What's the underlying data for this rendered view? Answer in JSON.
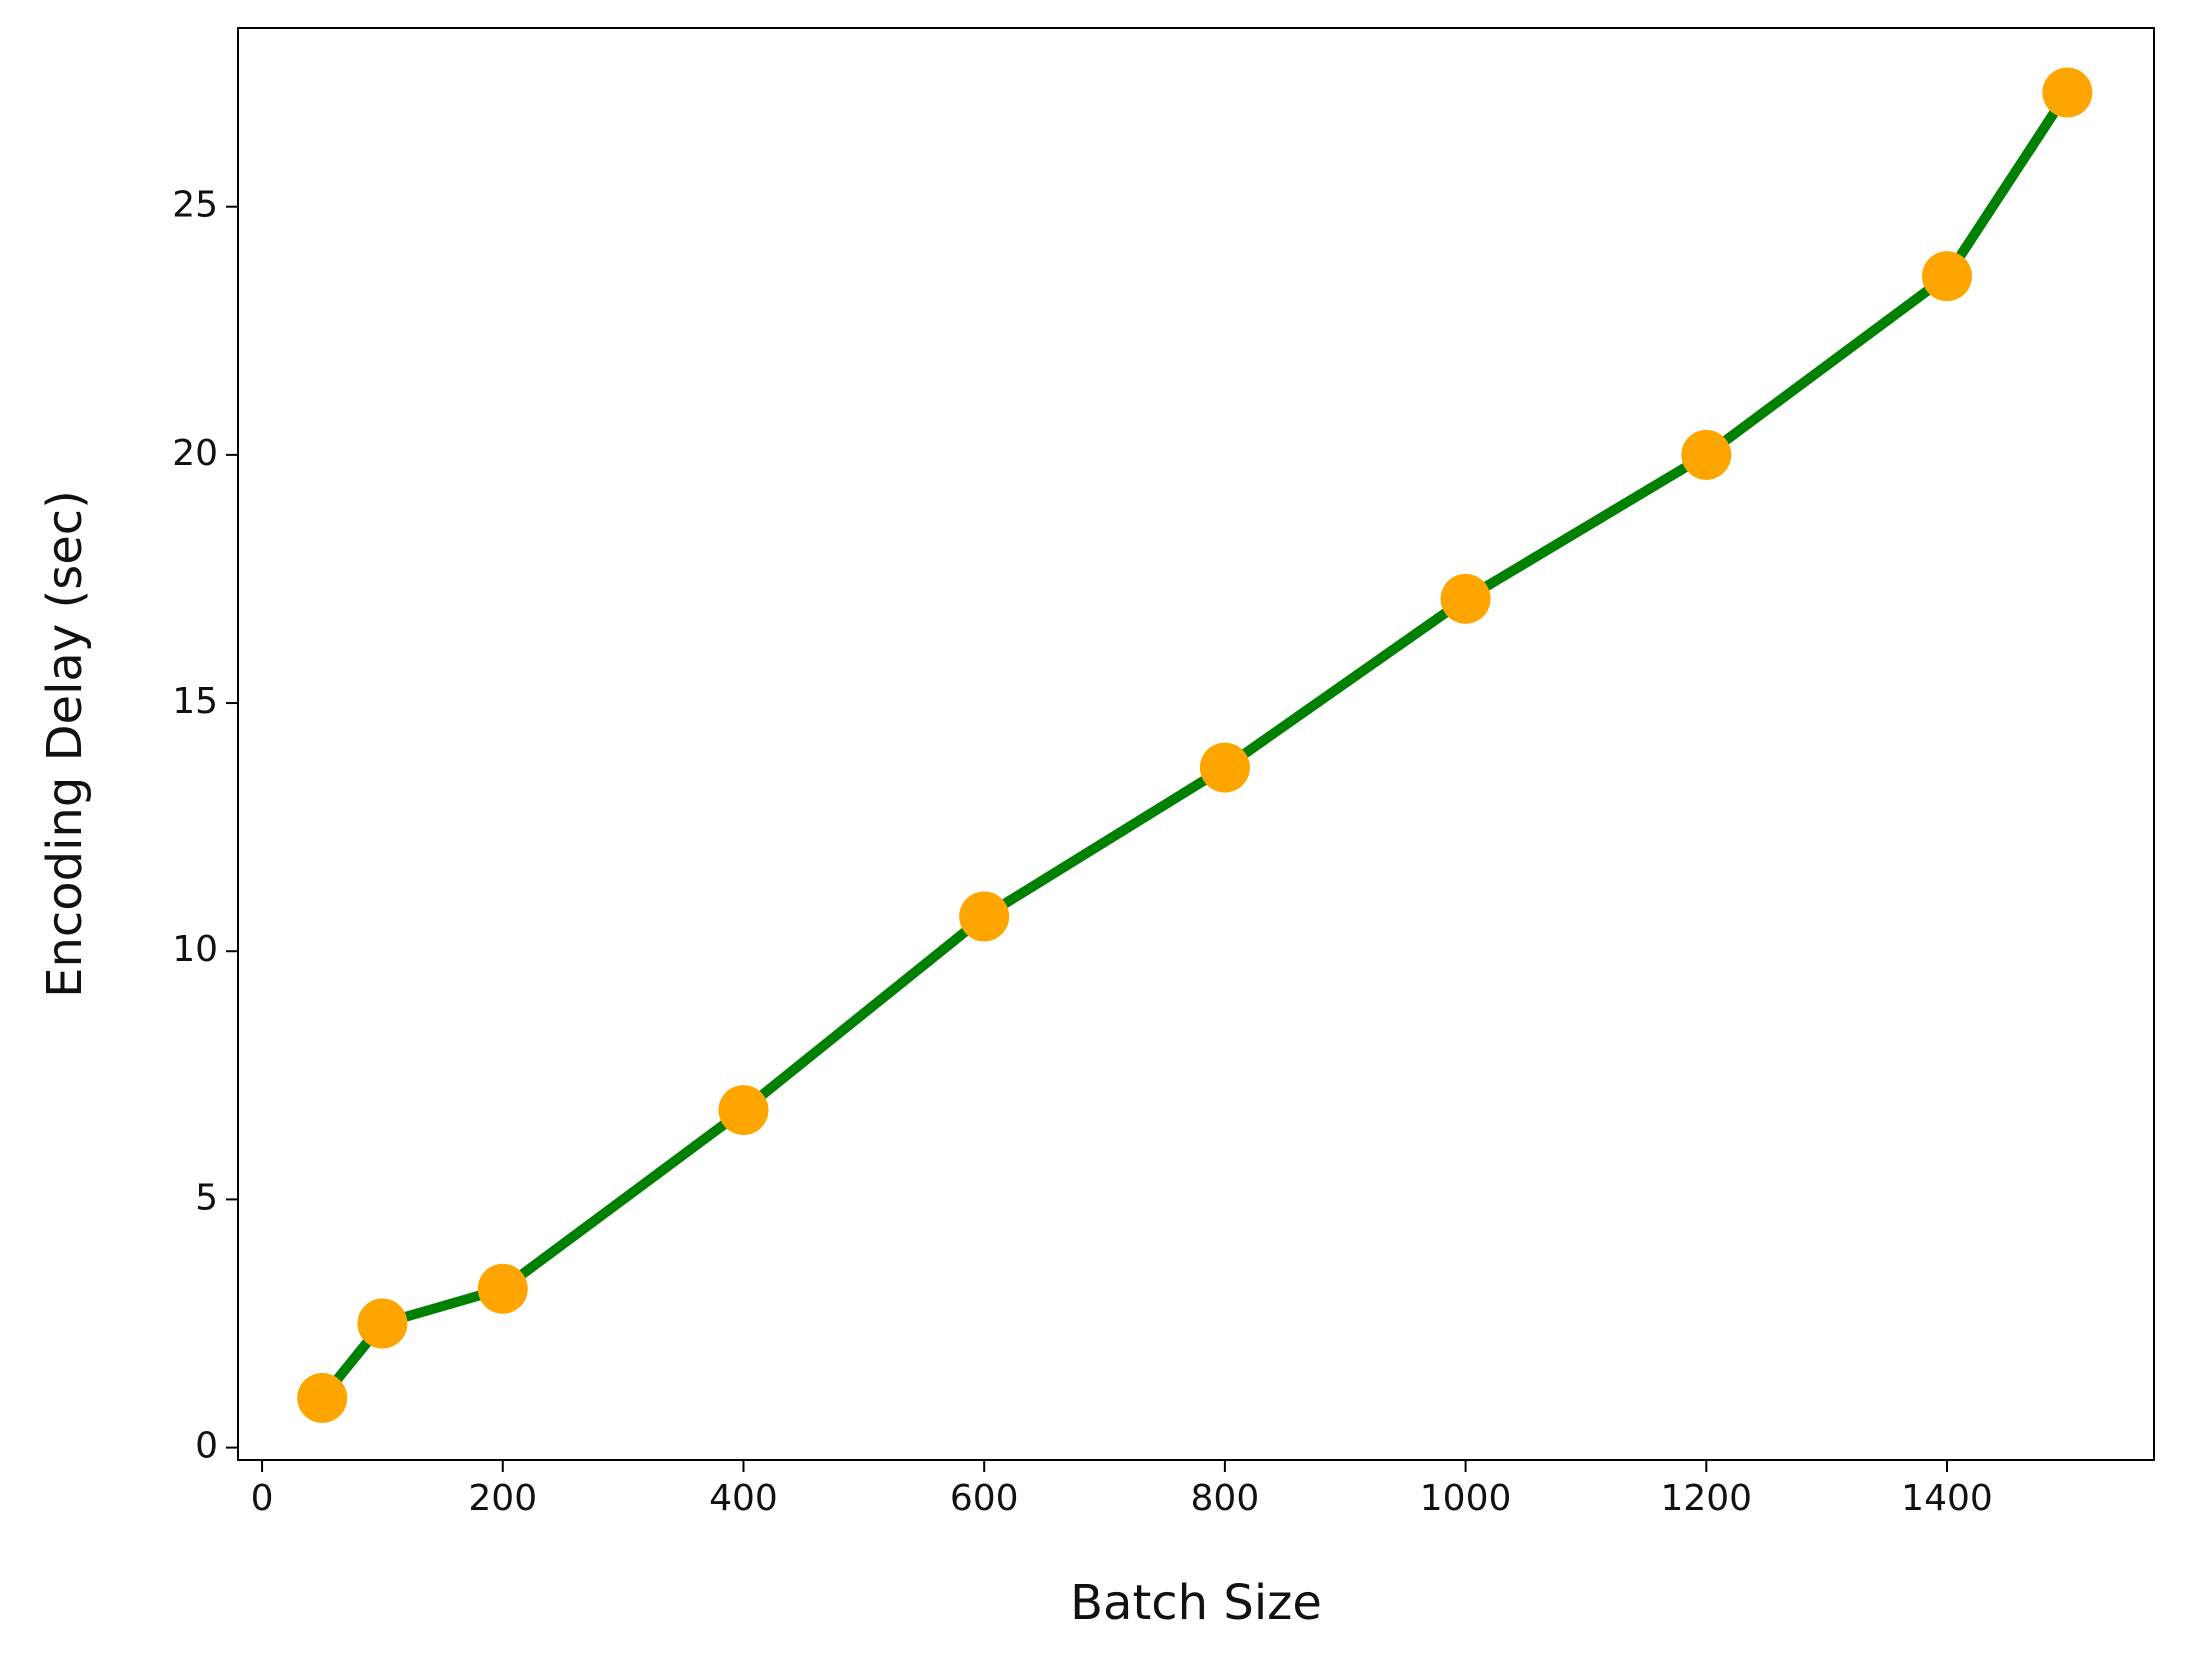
{
  "chart_data": {
    "type": "line",
    "x_label": "Batch Size",
    "y_label": "Encoding Delay (sec)",
    "x": [
      50,
      100,
      200,
      400,
      600,
      800,
      1000,
      1200,
      1400,
      1500
    ],
    "series": [
      {
        "color": "#008000",
        "marker_color": "#ffa500",
        "values": [
          1.0,
          2.5,
          3.2,
          6.8,
          10.7,
          13.7,
          17.1,
          20.0,
          23.6,
          27.3
        ]
      }
    ],
    "xlim": [
      -20,
      1572
    ],
    "ylim": [
      -0.25,
      28.6
    ],
    "xticks": [
      0,
      200,
      400,
      600,
      800,
      1000,
      1200,
      1400
    ],
    "yticks": [
      0,
      5,
      10,
      15,
      20,
      25
    ]
  }
}
